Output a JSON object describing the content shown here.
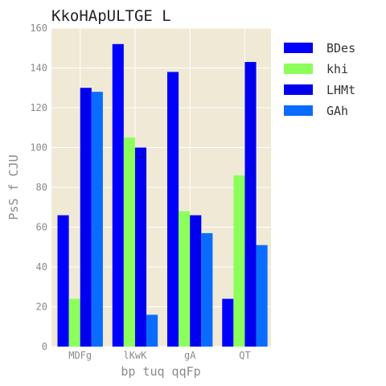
{
  "chart_data": {
    "type": "bar",
    "title": "KkoHApULTGE L",
    "xlabel": "bp tuq qqFp",
    "ylabel": "PsS f CJU",
    "categories": [
      "MDFg",
      "lKwK",
      "gA",
      "QT"
    ],
    "series": [
      {
        "name": "BDes",
        "color": "#0000ff",
        "values": [
          66,
          152,
          138,
          24
        ]
      },
      {
        "name": "khi",
        "color": "#8cff5a",
        "values": [
          24,
          105,
          68,
          86
        ]
      },
      {
        "name": "LHMt",
        "color": "#0000ee",
        "values": [
          130,
          100,
          66,
          143
        ]
      },
      {
        "name": "GAh",
        "color": "#0a6cff",
        "values": [
          128,
          16,
          57,
          51
        ]
      }
    ],
    "ylim": [
      0,
      160
    ],
    "yticks": [
      0,
      20,
      40,
      60,
      80,
      100,
      120,
      140,
      160
    ],
    "grid": true,
    "legend_position": "right",
    "plot_background": "#efe9d6"
  }
}
